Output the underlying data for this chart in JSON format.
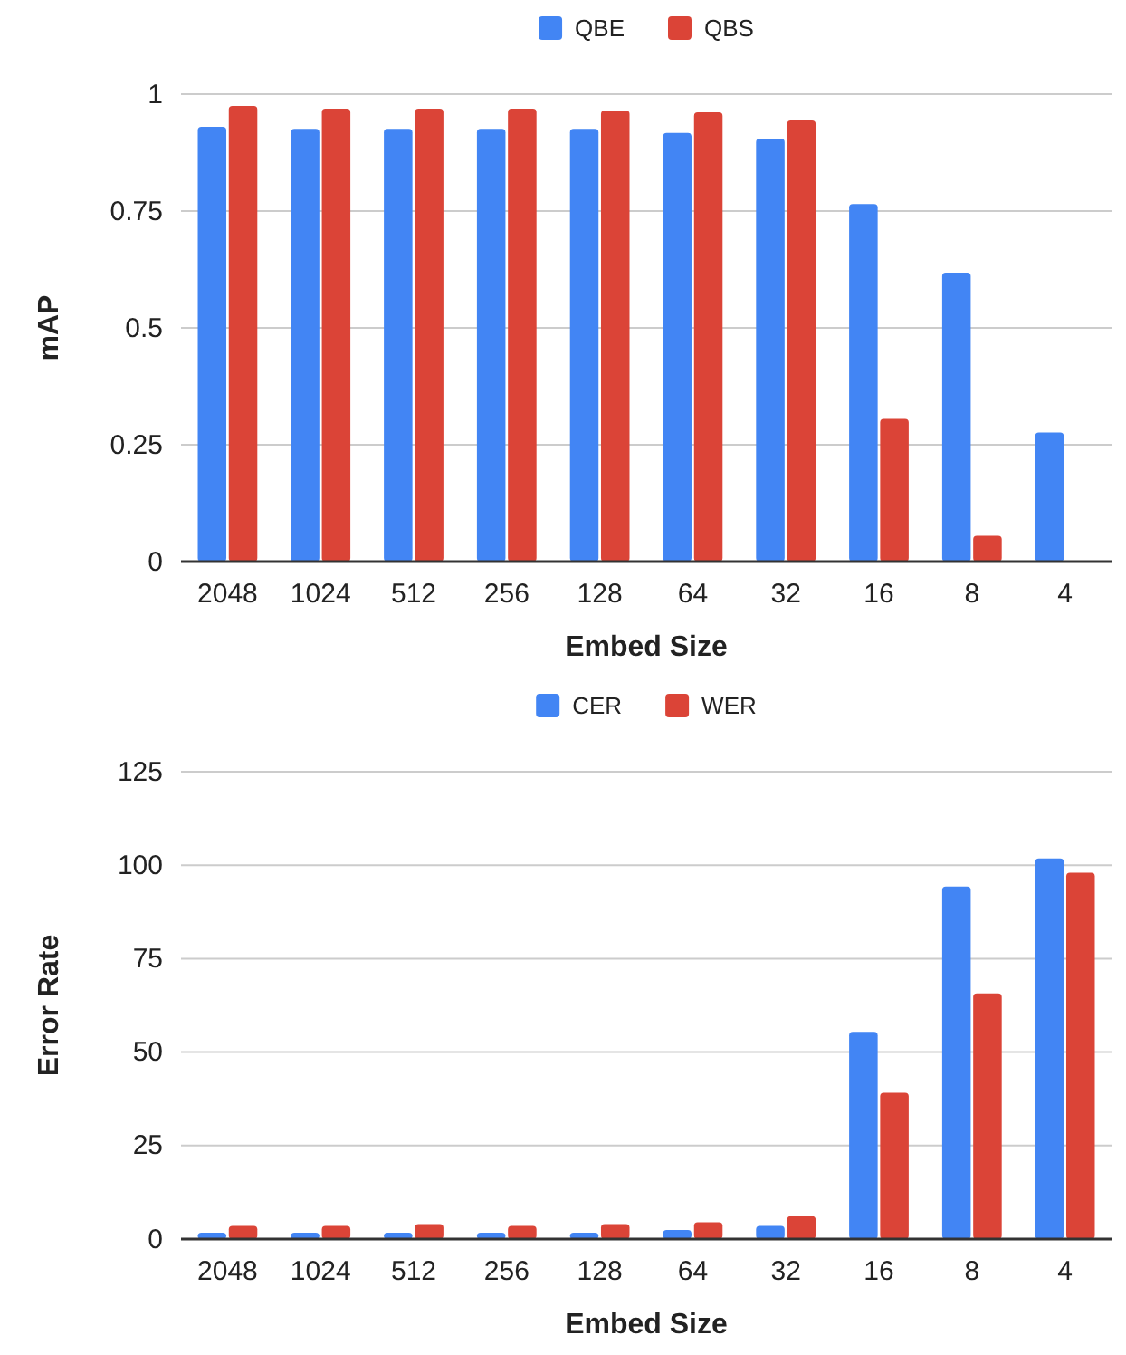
{
  "chart_data": [
    {
      "type": "bar",
      "xlabel": "Embed Size",
      "ylabel": "mAP",
      "categories": [
        "2048",
        "1024",
        "512",
        "256",
        "128",
        "64",
        "32",
        "16",
        "8",
        "4"
      ],
      "series": [
        {
          "name": "QBE",
          "color": "#4285f4",
          "values": [
            0.93,
            0.926,
            0.926,
            0.926,
            0.926,
            0.917,
            0.905,
            0.765,
            0.618,
            0.276
          ]
        },
        {
          "name": "QBS",
          "color": "#db4437",
          "values": [
            0.975,
            0.969,
            0.969,
            0.969,
            0.965,
            0.961,
            0.944,
            0.305,
            0.055,
            0.002
          ]
        }
      ],
      "ylim": [
        0,
        1
      ],
      "yticks": [
        0,
        0.25,
        0.5,
        0.75,
        1
      ],
      "grid": "y",
      "legend": "top"
    },
    {
      "type": "bar",
      "xlabel": "Embed Size",
      "ylabel": "Error Rate",
      "categories": [
        "2048",
        "1024",
        "512",
        "256",
        "128",
        "64",
        "32",
        "16",
        "8",
        "4"
      ],
      "series": [
        {
          "name": "CER",
          "color": "#4285f4",
          "values": [
            1.7,
            1.7,
            1.7,
            1.7,
            1.7,
            2.4,
            3.5,
            55.4,
            94.3,
            101.8
          ]
        },
        {
          "name": "WER",
          "color": "#db4437",
          "values": [
            3.5,
            3.5,
            4.0,
            3.5,
            4.0,
            4.5,
            6.1,
            39.1,
            65.7,
            98.0
          ]
        }
      ],
      "ylim": [
        0,
        125
      ],
      "yticks": [
        0,
        25,
        50,
        75,
        100,
        125
      ],
      "grid": "y",
      "legend": "top"
    }
  ]
}
